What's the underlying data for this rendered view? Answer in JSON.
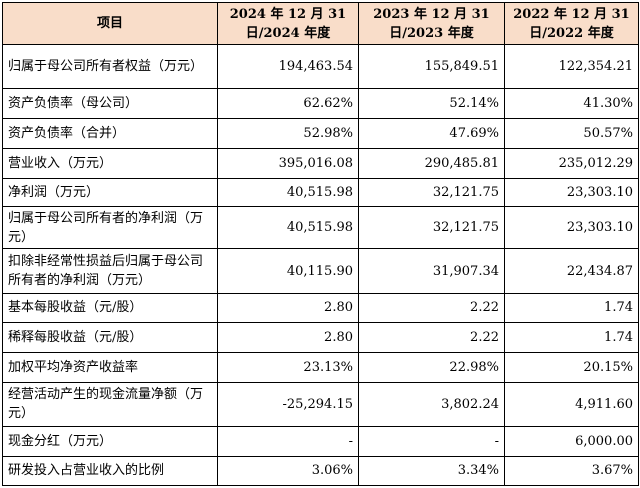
{
  "header": {
    "item": "项目",
    "col2024": "2024 年 12 月 31 日/2024 年度",
    "col2023": "2023 年 12 月 31 日/2023 年度",
    "col2022": "2022 年 12 月 31 日/2022 年度"
  },
  "rows": [
    {
      "label": "归属于母公司所有者权益（万元）",
      "v2024": "194,463.54",
      "v2023": "155,849.51",
      "v2022": "122,354.21"
    },
    {
      "label": "资产负债率（母公司）",
      "v2024": "62.62%",
      "v2023": "52.14%",
      "v2022": "41.30%"
    },
    {
      "label": "资产负债率（合并）",
      "v2024": "52.98%",
      "v2023": "47.69%",
      "v2022": "50.57%"
    },
    {
      "label": "营业收入（万元）",
      "v2024": "395,016.08",
      "v2023": "290,485.81",
      "v2022": "235,012.29"
    },
    {
      "label": "净利润（万元）",
      "v2024": "40,515.98",
      "v2023": "32,121.75",
      "v2022": "23,303.10"
    },
    {
      "label": "归属于母公司所有者的净利润（万元）",
      "v2024": "40,515.98",
      "v2023": "32,121.75",
      "v2022": "23,303.10"
    },
    {
      "label": "扣除非经常性损益后归属于母公司所有者的净利润（万元）",
      "v2024": "40,115.90",
      "v2023": "31,907.34",
      "v2022": "22,434.87"
    },
    {
      "label": "基本每股收益（元/股）",
      "v2024": "2.80",
      "v2023": "2.22",
      "v2022": "1.74"
    },
    {
      "label": "稀释每股收益（元/股）",
      "v2024": "2.80",
      "v2023": "2.22",
      "v2022": "1.74"
    },
    {
      "label": "加权平均净资产收益率",
      "v2024": "23.13%",
      "v2023": "22.98%",
      "v2022": "20.15%"
    },
    {
      "label": "经营活动产生的现金流量净额（万元）",
      "v2024": "-25,294.15",
      "v2023": "3,802.24",
      "v2022": "4,911.60"
    },
    {
      "label": "现金分红（万元）",
      "v2024": "-",
      "v2023": "-",
      "v2022": "6,000.00"
    },
    {
      "label": "研发投入占营业收入的比例",
      "v2024": "3.06%",
      "v2023": "3.34%",
      "v2022": "3.67%"
    }
  ]
}
